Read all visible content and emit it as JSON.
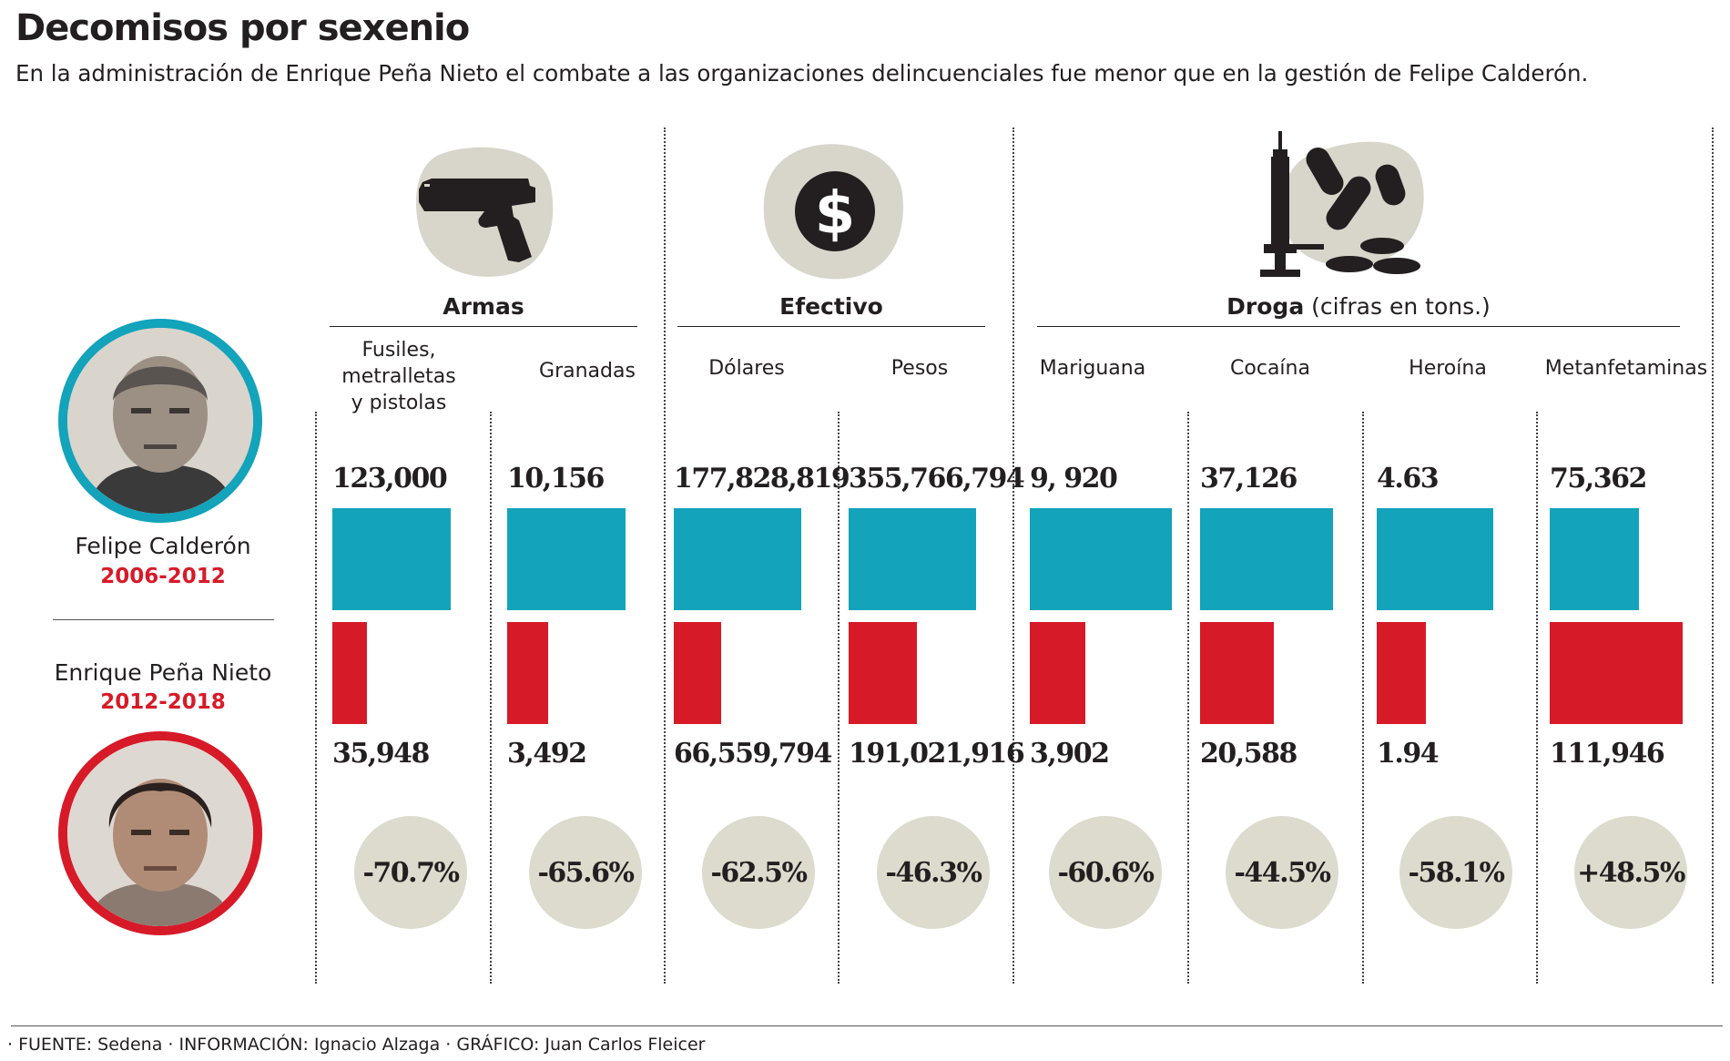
{
  "title": "Decomisos por sexenio",
  "subtitle": "En la administración de Enrique Peña Nieto el combate a las organizaciones delincuenciales fue menor que en la gestión de Felipe Calderón.",
  "colors": {
    "calderon": "#13a3ba",
    "pena": "#d71a28",
    "circle": "#dcdbcd",
    "blob": "#d8d6cb"
  },
  "groups": [
    {
      "name": "Armas",
      "note": "",
      "icon": "pistol-icon"
    },
    {
      "name": "Efectivo",
      "note": "",
      "icon": "dollar-coin-icon"
    },
    {
      "name": "Droga",
      "note": "(cifras en tons.)",
      "icon": "syringe-pills-icon"
    }
  ],
  "people": {
    "calderon": {
      "name": "Felipe Calderón",
      "years": "2006-2012"
    },
    "pena": {
      "name": "Enrique Peña Nieto",
      "years": "2012-2018"
    }
  },
  "footer": "· FUENTE: Sedena   · INFORMACIÓN:  Ignacio Alzaga · GRÁFICO: Juan Carlos Fleicer",
  "chart_data": {
    "type": "bar",
    "categories": [
      "Fusiles, metralletas y pistolas",
      "Granadas",
      "Dólares",
      "Pesos",
      "Mariguana",
      "Cocaína",
      "Heroína",
      "Metanfetaminas"
    ],
    "series": [
      {
        "name": "Felipe Calderón 2006-2012",
        "values": [
          123000,
          10156,
          177828819,
          355766794,
          9920,
          37126,
          4.63,
          75362
        ],
        "labels": [
          "123,000",
          "10,156",
          "177,828,819",
          "355,766,794",
          "9, 920",
          "37,126",
          "4.63",
          "75,362"
        ]
      },
      {
        "name": "Enrique Peña Nieto 2012-2018",
        "values": [
          35948,
          3492,
          66559794,
          191021916,
          3902,
          20588,
          1.94,
          111946
        ],
        "labels": [
          "35,948",
          "3,492",
          "66,559,794",
          "191,021,916",
          "3,902",
          "20,588",
          "1.94",
          "111,946"
        ]
      }
    ],
    "change": [
      "-70.7%",
      "-65.6%",
      "-62.5%",
      "-46.3%",
      "-60.6%",
      "-44.5%",
      "-58.1%",
      "+48.5%"
    ]
  }
}
